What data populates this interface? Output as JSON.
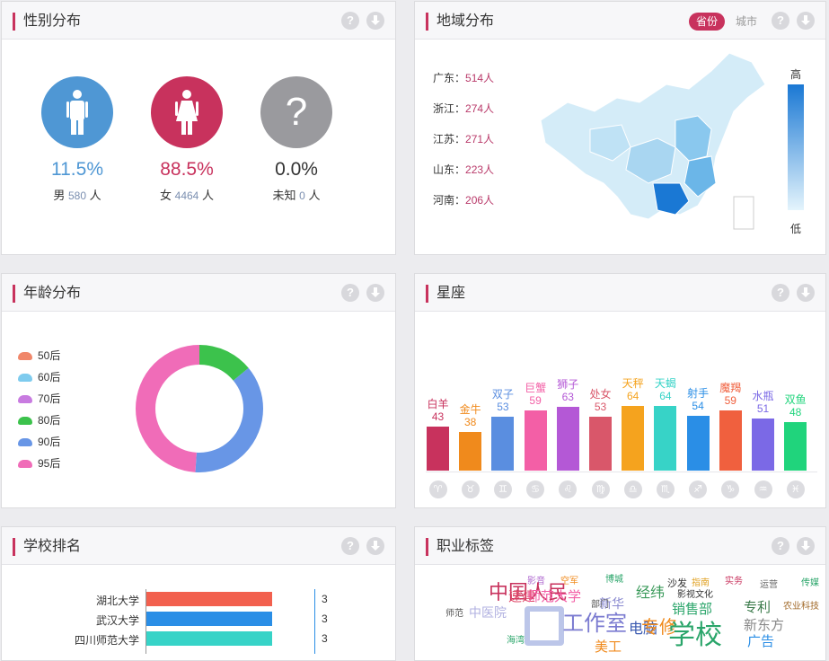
{
  "gender": {
    "title": "性别分布",
    "items": [
      {
        "pct": "11.5%",
        "label": "男",
        "count": "580",
        "unit": "人",
        "color": "#4f97d4",
        "icon": "male-icon"
      },
      {
        "pct": "88.5%",
        "label": "女",
        "count": "4464",
        "unit": "人",
        "color": "#c8325d",
        "icon": "female-icon"
      },
      {
        "pct": "0.0%",
        "label": "未知",
        "count": "0",
        "unit": "人",
        "color": "#9a9a9e",
        "icon": "question-icon",
        "glyph": "?"
      }
    ]
  },
  "region": {
    "title": "地域分布",
    "toggle": {
      "province": "省份",
      "city": "城市"
    },
    "rows": [
      {
        "name": "广东：",
        "value": "514人"
      },
      {
        "name": "浙江：",
        "value": "274人"
      },
      {
        "name": "江苏：",
        "value": "271人"
      },
      {
        "name": "山东：",
        "value": "223人"
      },
      {
        "name": "河南：",
        "value": "206人"
      }
    ],
    "scale": {
      "high": "高",
      "low": "低"
    }
  },
  "age": {
    "title": "年龄分布",
    "chart_data": {
      "type": "pie",
      "labels": [
        "50后",
        "60后",
        "70后",
        "80后",
        "90后",
        "95后"
      ],
      "values": [
        0.0,
        0.0,
        0.0,
        14,
        37,
        49
      ],
      "colors": [
        "#f0876a",
        "#7ecbee",
        "#c87be0",
        "#3cc24c",
        "#6896e6",
        "#f06cb8"
      ]
    }
  },
  "zodiac": {
    "title": "星座",
    "chart_data": {
      "type": "bar",
      "categories": [
        "白羊",
        "金牛",
        "双子",
        "巨蟹",
        "狮子",
        "处女",
        "天秤",
        "天蝎",
        "射手",
        "魔羯",
        "水瓶",
        "双鱼"
      ],
      "values": [
        43,
        38,
        53,
        59,
        63,
        53,
        64,
        64,
        54,
        59,
        51,
        48
      ],
      "colors": [
        "#c8325d",
        "#f08a1c",
        "#5a8ee0",
        "#f35fa6",
        "#b458d6",
        "#d9576a",
        "#f5a31e",
        "#37d3c7",
        "#2a8ee6",
        "#f0603e",
        "#7b69e6",
        "#20d47c"
      ]
    },
    "symbols": [
      "♈",
      "♉",
      "♊",
      "♋",
      "♌",
      "♍",
      "♎",
      "♏",
      "♐",
      "♑",
      "♒",
      "♓"
    ]
  },
  "school": {
    "title": "学校排名",
    "chart_data": {
      "type": "bar",
      "categories": [
        "湖北大学",
        "武汉大学",
        "四川师范大学"
      ],
      "values": [
        3,
        3,
        3
      ],
      "colors": [
        "#f2604e",
        "#2a8ee6",
        "#37d3c7"
      ]
    }
  },
  "job": {
    "title": "职业标签",
    "words": [
      "影音",
      "空军",
      "博城",
      "沙发",
      "指南",
      "实务",
      "运营",
      "传媒",
      "中国人民",
      "速建",
      "师范大学",
      "新华",
      "经纬",
      "影视文化",
      "专利",
      "农业科技",
      "中医院",
      "工作室",
      "电脑",
      "销售部",
      "新东方",
      "师范",
      "美工",
      "专修",
      "学校",
      "广告",
      "海湾",
      "部门"
    ]
  },
  "icons": {
    "help": "?"
  }
}
